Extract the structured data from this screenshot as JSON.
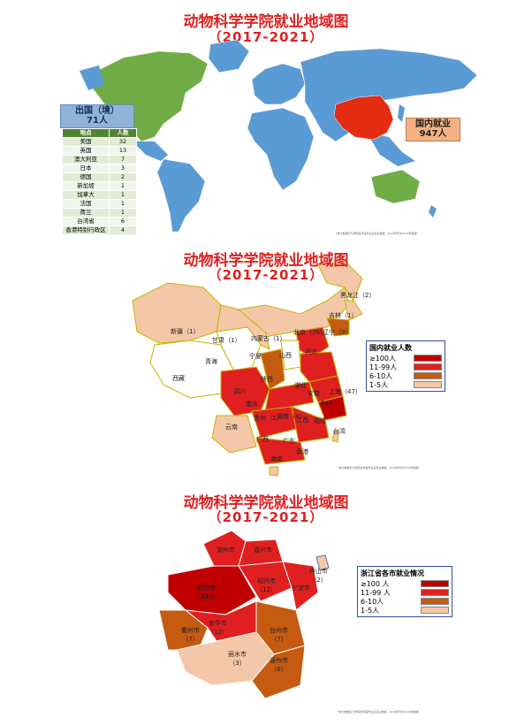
{
  "titles": {
    "world": "动物科学学院就业地域图",
    "world_years": "（2017-2021）",
    "china": "动物科学学院就业地域图",
    "china_years": "（2017-2021）",
    "zhejiang": "动物科学学院就业地域图",
    "zhejiang_years": "（2017-2021）"
  },
  "colors": {
    "ocean": "#ffffff",
    "land_blue": "#5b9bd5",
    "land_green": "#70ad47",
    "china_red": "#e52d14",
    "level_100": "#c00000",
    "level_11_99": "#e02020",
    "level_6_10": "#c55a11",
    "level_1_5": "#f4c7a8",
    "unlisted": "#ffffff",
    "border_yellow": "#c8b400"
  },
  "world": {
    "abroad_label": "出国（境）",
    "abroad_total": "71人",
    "domestic_label": "国内就业",
    "domestic_total": "947人",
    "table_headers": [
      "地点",
      "人数"
    ],
    "table_rows": [
      [
        "美国",
        "32"
      ],
      [
        "英国",
        "13"
      ],
      [
        "澳大利亚",
        "7"
      ],
      [
        "日本",
        "3"
      ],
      [
        "德国",
        "2"
      ],
      [
        "新加坡",
        "1"
      ],
      [
        "加拿大",
        "1"
      ],
      [
        "法国",
        "1"
      ],
      [
        "荷兰",
        "1"
      ],
      [
        "台湾省",
        "6"
      ],
      [
        "香港特别行政区",
        "4"
      ]
    ]
  },
  "china": {
    "legend_title": "国内就业人数",
    "legend": [
      {
        "label": "≥100人",
        "color": "#c00000"
      },
      {
        "label": "11-99人",
        "color": "#e02020"
      },
      {
        "label": "6-10人",
        "color": "#c55a11"
      },
      {
        "label": "1-5人",
        "color": "#f4c7a8"
      }
    ],
    "labels": [
      {
        "text": "黑龙江（2）"
      },
      {
        "text": "吉林（1）"
      },
      {
        "text": "辽宁（9）"
      },
      {
        "text": "北京（26）"
      },
      {
        "text": "新疆（1）"
      },
      {
        "text": "内蒙古（1）"
      },
      {
        "text": "甘肃（1）"
      },
      {
        "text": "青海"
      },
      {
        "text": "宁夏"
      },
      {
        "text": "山西"
      },
      {
        "text": "河北"
      },
      {
        "text": "西藏"
      },
      {
        "text": "陕西"
      },
      {
        "text": "四川"
      },
      {
        "text": "重庆"
      },
      {
        "text": "湖北"
      },
      {
        "text": "安徽"
      },
      {
        "text": "上海（47）"
      },
      {
        "text": "643"
      },
      {
        "text": "福建"
      },
      {
        "text": "江西"
      },
      {
        "text": "湖南（4）"
      },
      {
        "text": "贵州（2）"
      },
      {
        "text": "云南"
      },
      {
        "text": "广西"
      },
      {
        "text": "广东"
      },
      {
        "text": "香港"
      },
      {
        "text": "台湾"
      },
      {
        "text": "海南"
      }
    ]
  },
  "zhejiang": {
    "legend_title": "浙江省各市就业情况",
    "legend": [
      {
        "label": "≥100 人",
        "color": "#c00000"
      },
      {
        "label": "11-99 人",
        "color": "#e02020"
      },
      {
        "label": "6-10人",
        "color": "#c55a11"
      },
      {
        "label": "1-5人",
        "color": "#f4c7a8"
      }
    ],
    "cities": [
      {
        "name": "湖州市"
      },
      {
        "name": "嘉兴市"
      },
      {
        "name": "杭州市",
        "count": "（333）"
      },
      {
        "name": "绍兴市",
        "count": "（12）"
      },
      {
        "name": "舟山市",
        "count": "（2）"
      },
      {
        "name": "宁波市"
      },
      {
        "name": "金华市",
        "count": "（12）"
      },
      {
        "name": "衢州市",
        "count": "（7）"
      },
      {
        "name": "台州市",
        "count": "（7）"
      },
      {
        "name": "丽水市",
        "count": "（3）"
      },
      {
        "name": "温州市",
        "count": "（6）"
      }
    ]
  },
  "notes": {
    "world_note": "*统计数据仅为学院当年度毕业生就业数据，2018年暂无2020年数据",
    "china_note": "*统计数据仅为学院当年度毕业生就业数据，2018年暂无2020年数据",
    "zhejiang_note": "*统计数据仅为学院当年度毕业生就业数据，2018年暂无2020年数据"
  }
}
